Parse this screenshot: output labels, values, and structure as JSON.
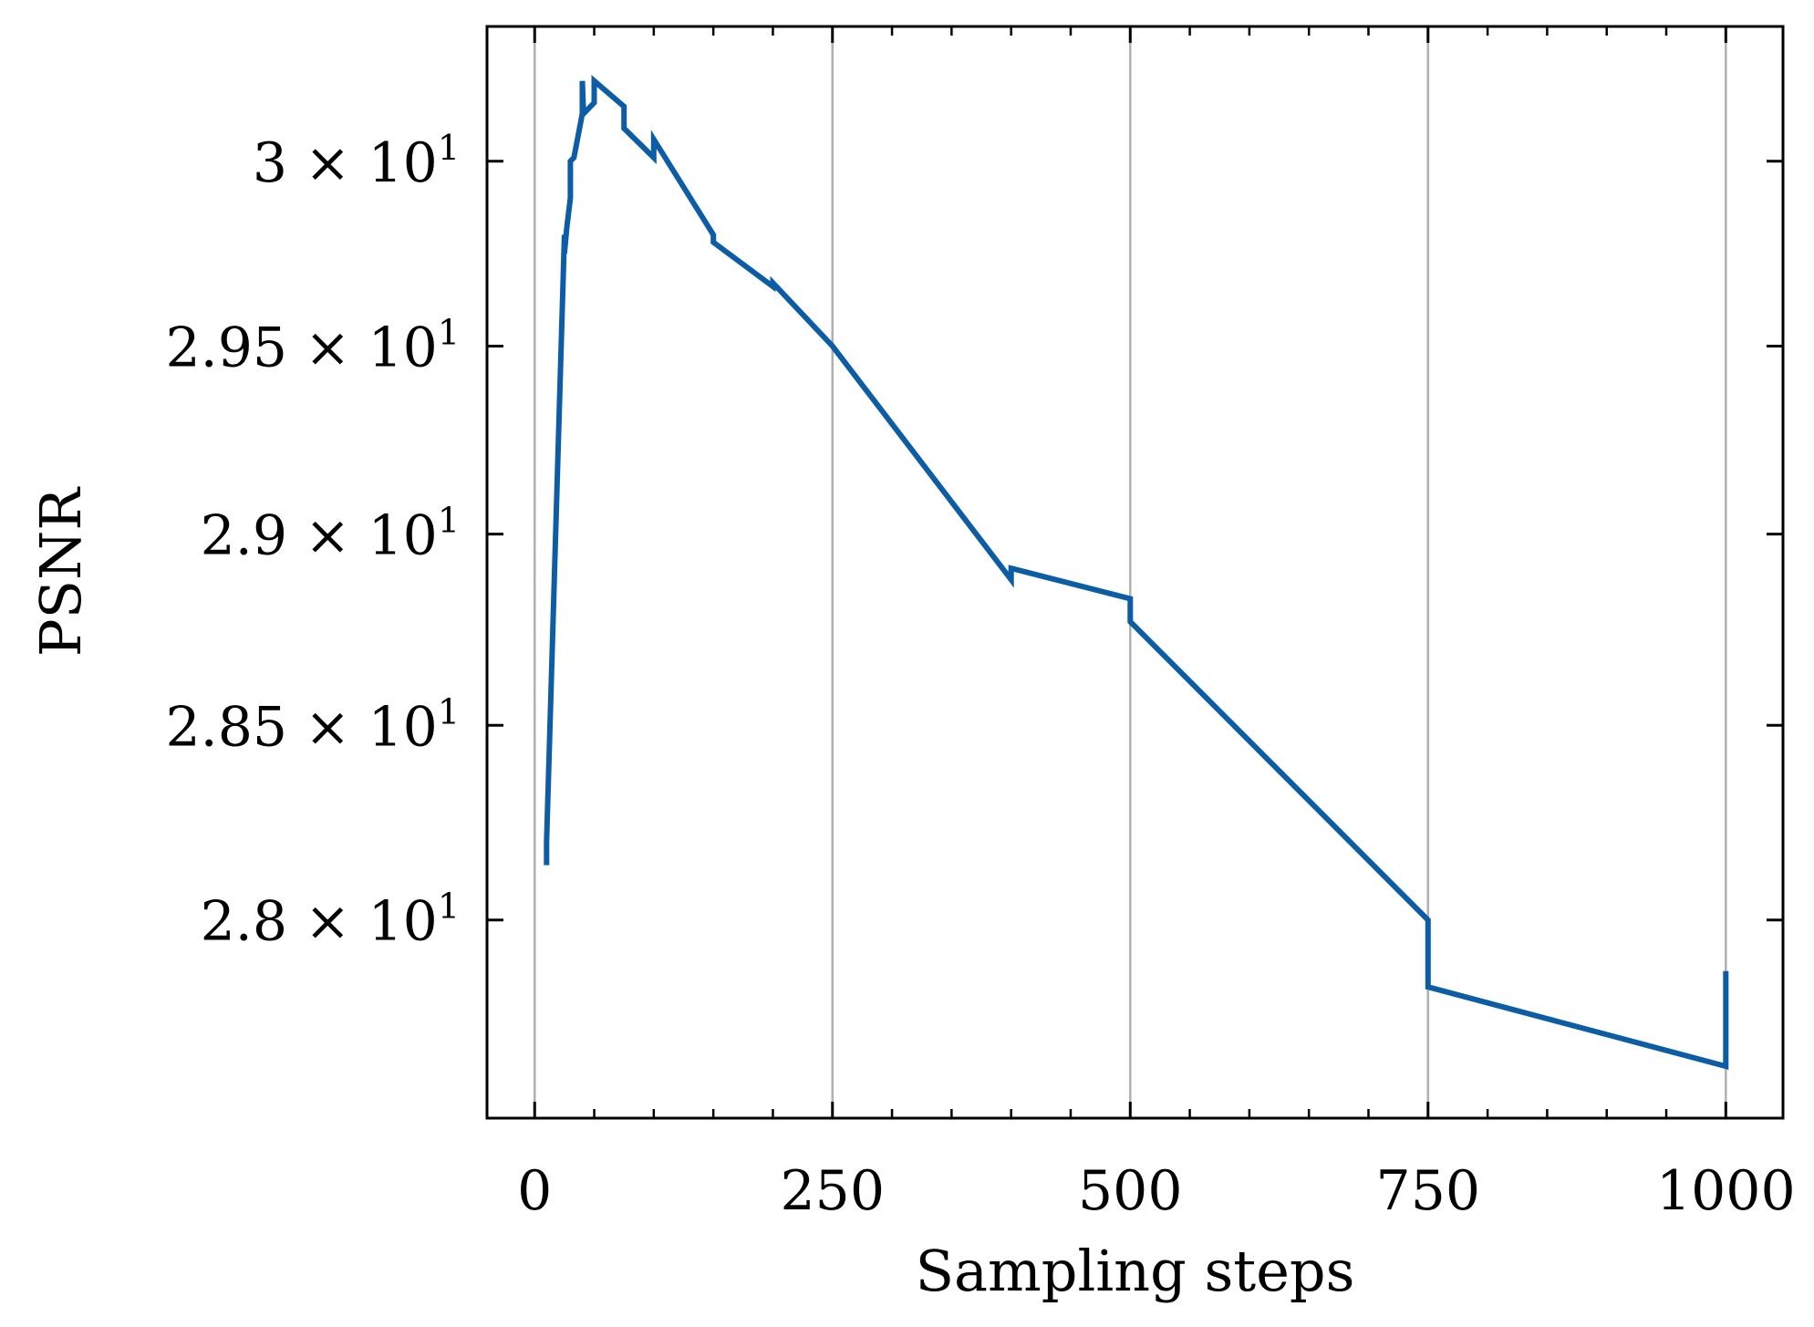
{
  "chart_data": {
    "type": "line",
    "xlabel": "Sampling steps",
    "ylabel": "PSNR",
    "xlim": [
      -40,
      1048
    ],
    "ylim": [
      27.5,
      30.37
    ],
    "y_scale": "log",
    "grid": "vertical only",
    "x_ticks": [
      {
        "value": 0,
        "label": "0"
      },
      {
        "value": 250,
        "label": "250"
      },
      {
        "value": 500,
        "label": "500"
      },
      {
        "value": 750,
        "label": "750"
      },
      {
        "value": 1000,
        "label": "1000"
      }
    ],
    "y_ticks": [
      {
        "value": 28.0,
        "mantissa": "2.8",
        "times": "×",
        "base": "10",
        "exp": "1"
      },
      {
        "value": 28.5,
        "mantissa": "2.85",
        "times": "×",
        "base": "10",
        "exp": "1"
      },
      {
        "value": 29.0,
        "mantissa": "2.9",
        "times": "×",
        "base": "10",
        "exp": "1"
      },
      {
        "value": 29.5,
        "mantissa": "2.95",
        "times": "×",
        "base": "10",
        "exp": "1"
      },
      {
        "value": 30.0,
        "mantissa": "3",
        "times": "×",
        "base": "10",
        "exp": "1"
      }
    ],
    "series": [
      {
        "color": "#0C5DA5",
        "points": [
          [
            10,
            28.14
          ],
          [
            10,
            28.2
          ],
          [
            25,
            29.8
          ],
          [
            25,
            29.75
          ],
          [
            27,
            29.82
          ],
          [
            30,
            29.9
          ],
          [
            30,
            30.0
          ],
          [
            33,
            30.01
          ],
          [
            40,
            30.13
          ],
          [
            40,
            30.22
          ],
          [
            41,
            30.13
          ],
          [
            50,
            30.16
          ],
          [
            50,
            30.22
          ],
          [
            75,
            30.15
          ],
          [
            75,
            30.09
          ],
          [
            100,
            30.01
          ],
          [
            100,
            30.06
          ],
          [
            150,
            29.8
          ],
          [
            150,
            29.78
          ],
          [
            200,
            29.66
          ],
          [
            200,
            29.67
          ],
          [
            250,
            29.5
          ],
          [
            400,
            28.88
          ],
          [
            400,
            28.91
          ],
          [
            500,
            28.83
          ],
          [
            500,
            28.77
          ],
          [
            750,
            28.0
          ],
          [
            750,
            27.83
          ],
          [
            1000,
            27.63
          ],
          [
            1000,
            27.87
          ]
        ]
      }
    ]
  }
}
